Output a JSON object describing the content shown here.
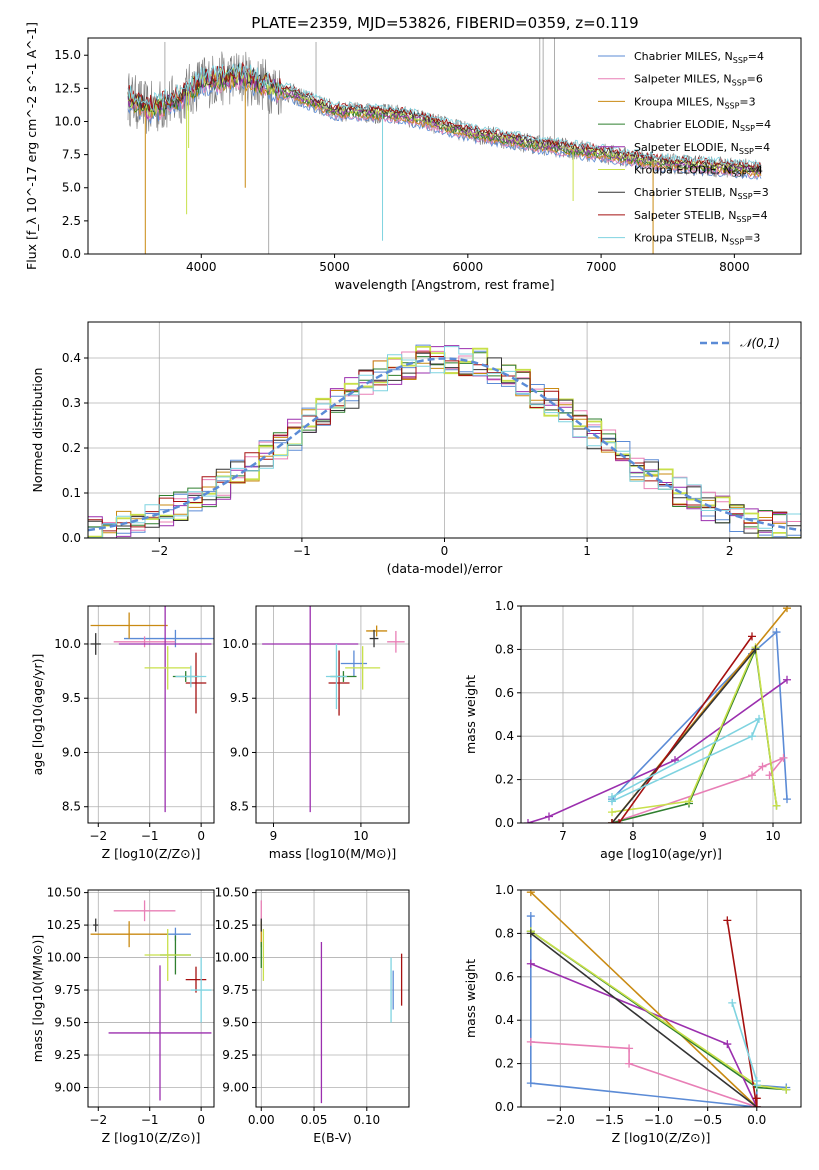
{
  "figure_title": "PLATE=2359, MJD=53826, FIBERID=0359, z=0.119",
  "models": [
    {
      "name": "Chabrier MILES",
      "nssp": "4",
      "color": "#5b8bd6"
    },
    {
      "name": "Salpeter MILES",
      "nssp": "6",
      "color": "#e87fb6"
    },
    {
      "name": "Kroupa MILES",
      "nssp": "3",
      "color": "#c98a12"
    },
    {
      "name": "Chabrier ELODIE",
      "nssp": "4",
      "color": "#2f7f2f"
    },
    {
      "name": "Salpeter ELODIE",
      "nssp": "4",
      "color": "#9b2fae"
    },
    {
      "name": "Kroupa ELODIE",
      "nssp": "4",
      "color": "#c8e04a"
    },
    {
      "name": "Chabrier STELIB",
      "nssp": "3",
      "color": "#333333"
    },
    {
      "name": "Salpeter STELIB",
      "nssp": "4",
      "color": "#a51010"
    },
    {
      "name": "Kroupa STELIB",
      "nssp": "3",
      "color": "#7fd3e0"
    }
  ],
  "chart_data": [
    {
      "id": "spectrum",
      "type": "line",
      "xlabel": "wavelength [Angstrom, rest frame]",
      "ylabel": "Flux [f_λ 10^-17 erg cm^-2 s^-1 A^-1]",
      "xlim": [
        3150,
        8500
      ],
      "ylim": [
        0,
        16.3
      ],
      "xticks": [
        "4000",
        "5000",
        "6000",
        "7000",
        "8000"
      ],
      "yticks": [
        "0.0",
        "2.5",
        "5.0",
        "7.5",
        "10.0",
        "12.5",
        "15.0"
      ],
      "legend_placement": "top-right",
      "grid": false,
      "continuum": [
        [
          3450,
          11.8
        ],
        [
          3600,
          10.9
        ],
        [
          3800,
          11.5
        ],
        [
          4000,
          13.0
        ],
        [
          4300,
          13.4
        ],
        [
          4700,
          12.0
        ],
        [
          5000,
          10.8
        ],
        [
          5500,
          10.5
        ],
        [
          6000,
          9.2
        ],
        [
          6500,
          8.3
        ],
        [
          7000,
          7.6
        ],
        [
          7500,
          6.8
        ],
        [
          8000,
          6.5
        ],
        [
          8200,
          6.3
        ]
      ]
    },
    {
      "id": "residuals",
      "type": "bar",
      "xlabel": "(data-model)/error",
      "ylabel": "Normed distribution",
      "xlim": [
        -2.5,
        2.5
      ],
      "ylim": [
        0,
        0.48
      ],
      "xticks": [
        "−2",
        "−1",
        "0",
        "1",
        "2"
      ],
      "yticks": [
        "0.0",
        "0.1",
        "0.2",
        "0.3",
        "0.4"
      ],
      "legend": "𝒩(0,1)",
      "legend_placement": "top-right",
      "grid": true
    },
    {
      "id": "age_vs_Z",
      "type": "scatter",
      "xlabel": "Z [log10(Z/Z⊙)]",
      "ylabel": "age  [log10(age/yr)]",
      "xlim": [
        -2.2,
        0.25
      ],
      "ylim": [
        8.35,
        10.35
      ],
      "xticks": [
        "−2",
        "−1",
        "0"
      ],
      "yticks": [
        "8.5",
        "9.0",
        "9.5",
        "10.0"
      ],
      "grid": true,
      "points": [
        {
          "model": 0,
          "x": -0.5,
          "y": 10.05,
          "ex": 1.0,
          "ey": 0.08
        },
        {
          "model": 1,
          "x": -1.1,
          "y": 10.02,
          "ex": 0.6,
          "ey": 0.05
        },
        {
          "model": 2,
          "x": -1.4,
          "y": 10.17,
          "ex": 0.75,
          "ey": 0.12
        },
        {
          "model": 3,
          "x": -0.3,
          "y": 9.7,
          "ex": 0.25,
          "ey": 0.05
        },
        {
          "model": 4,
          "x": -0.7,
          "y": 10.0,
          "ex": 0.9,
          "ey": 1.55
        },
        {
          "model": 5,
          "x": -0.65,
          "y": 9.78,
          "ex": 0.45,
          "ey": 0.2
        },
        {
          "model": 6,
          "x": -2.05,
          "y": 10.0,
          "ex": 0.1,
          "ey": 0.1
        },
        {
          "model": 7,
          "x": -0.1,
          "y": 9.64,
          "ex": 0.2,
          "ey": 0.28
        },
        {
          "model": 8,
          "x": -0.2,
          "y": 9.7,
          "ex": 0.3,
          "ey": 0.1
        }
      ]
    },
    {
      "id": "age_vs_mass",
      "type": "scatter",
      "xlabel": "mass [log10(M/M⊙)]",
      "ylabel": "",
      "xlim": [
        8.8,
        10.55
      ],
      "ylim": [
        8.35,
        10.35
      ],
      "xticks": [
        "9",
        "10"
      ],
      "yticks": [
        "8.5",
        "9.0",
        "9.5",
        "10.0"
      ],
      "grid": true,
      "points": [
        {
          "model": 0,
          "x": 9.92,
          "y": 9.82,
          "ex": 0.15,
          "ey": 0.12
        },
        {
          "model": 1,
          "x": 10.4,
          "y": 10.02,
          "ex": 0.1,
          "ey": 0.1
        },
        {
          "model": 2,
          "x": 10.18,
          "y": 10.12,
          "ex": 0.12,
          "ey": 0.05
        },
        {
          "model": 3,
          "x": 9.8,
          "y": 9.7,
          "ex": 0.15,
          "ey": 0.05
        },
        {
          "model": 4,
          "x": 9.42,
          "y": 10.0,
          "ex": 0.55,
          "ey": 1.55
        },
        {
          "model": 5,
          "x": 10.02,
          "y": 9.78,
          "ex": 0.2,
          "ey": 0.2
        },
        {
          "model": 6,
          "x": 10.15,
          "y": 10.05,
          "ex": 0.05,
          "ey": 0.08
        },
        {
          "model": 7,
          "x": 9.75,
          "y": 9.64,
          "ex": 0.12,
          "ey": 0.3
        },
        {
          "model": 8,
          "x": 9.72,
          "y": 9.7,
          "ex": 0.12,
          "ey": 0.3
        }
      ]
    },
    {
      "id": "weight_vs_age",
      "type": "line",
      "xlabel": "age  [log10(age/yr)]",
      "ylabel": "mass weight",
      "xlim": [
        6.4,
        10.4
      ],
      "ylim": [
        0,
        1.0
      ],
      "xticks": [
        "7",
        "8",
        "9",
        "10"
      ],
      "yticks": [
        "0.0",
        "0.2",
        "0.4",
        "0.6",
        "0.8",
        "1.0"
      ],
      "grid": true,
      "series": [
        {
          "model": 0,
          "points": [
            [
              7.7,
              0.11
            ],
            [
              9.7,
              0.78
            ],
            [
              10.05,
              0.88
            ],
            [
              10.2,
              0.11
            ]
          ]
        },
        {
          "model": 1,
          "points": [
            [
              7.7,
              0.0
            ],
            [
              9.7,
              0.22
            ],
            [
              9.85,
              0.26
            ],
            [
              10.15,
              0.3
            ],
            [
              9.95,
              0.22
            ]
          ]
        },
        {
          "model": 2,
          "points": [
            [
              7.7,
              0.0
            ],
            [
              10.2,
              0.99
            ]
          ]
        },
        {
          "model": 3,
          "points": [
            [
              7.7,
              0.0
            ],
            [
              8.8,
              0.09
            ],
            [
              9.75,
              0.8
            ],
            [
              10.05,
              0.08
            ]
          ]
        },
        {
          "model": 4,
          "points": [
            [
              6.5,
              0.0
            ],
            [
              6.8,
              0.03
            ],
            [
              8.6,
              0.29
            ],
            [
              10.2,
              0.66
            ]
          ]
        },
        {
          "model": 5,
          "points": [
            [
              7.7,
              0.05
            ],
            [
              8.8,
              0.1
            ],
            [
              9.75,
              0.81
            ],
            [
              10.05,
              0.08
            ]
          ]
        },
        {
          "model": 6,
          "points": [
            [
              7.7,
              0.0
            ],
            [
              9.75,
              0.8
            ]
          ]
        },
        {
          "model": 7,
          "points": [
            [
              7.7,
              0.0
            ],
            [
              7.8,
              0.0
            ],
            [
              9.7,
              0.86
            ]
          ]
        },
        {
          "model": 8,
          "points": [
            [
              7.7,
              0.1
            ],
            [
              9.7,
              0.4
            ],
            [
              9.8,
              0.48
            ],
            [
              7.7,
              0.12
            ]
          ]
        }
      ]
    },
    {
      "id": "mass_vs_Z",
      "type": "scatter",
      "xlabel": "Z [log10(Z/Z⊙)]",
      "ylabel": "mass [log10(M/M⊙)]",
      "xlim": [
        -2.2,
        0.25
      ],
      "ylim": [
        8.85,
        10.52
      ],
      "xticks": [
        "−2",
        "−1",
        "0"
      ],
      "yticks": [
        "9.00",
        "9.25",
        "9.50",
        "9.75",
        "10.00",
        "10.25",
        "10.50"
      ],
      "grid": true,
      "points": [
        {
          "model": 0,
          "x": -0.5,
          "y": 10.18,
          "ex": 0.3,
          "ey": 0.05
        },
        {
          "model": 1,
          "x": -1.1,
          "y": 10.36,
          "ex": 0.6,
          "ey": 0.08
        },
        {
          "model": 2,
          "x": -1.4,
          "y": 10.18,
          "ex": 0.75,
          "ey": 0.1
        },
        {
          "model": 3,
          "x": -0.5,
          "y": 10.02,
          "ex": 0.3,
          "ey": 0.15
        },
        {
          "model": 4,
          "x": -0.8,
          "y": 9.42,
          "ex": 1.0,
          "ey": 0.52
        },
        {
          "model": 5,
          "x": -0.65,
          "y": 10.02,
          "ex": 0.45,
          "ey": 0.2
        },
        {
          "model": 6,
          "x": -2.05,
          "y": 10.25,
          "ex": 0.05,
          "ey": 0.05
        },
        {
          "model": 7,
          "x": -0.1,
          "y": 9.83,
          "ex": 0.2,
          "ey": 0.1
        },
        {
          "model": 8,
          "x": 0.0,
          "y": 9.75,
          "ex": 0.2,
          "ey": 0.25
        }
      ]
    },
    {
      "id": "mass_vs_ebv",
      "type": "scatter",
      "xlabel": "E(B-V)",
      "ylabel": "",
      "xlim": [
        -0.005,
        0.14
      ],
      "ylim": [
        8.85,
        10.52
      ],
      "xticks": [
        "0.00",
        "0.05",
        "0.10"
      ],
      "yticks": [
        "9.00",
        "9.25",
        "9.50",
        "9.75",
        "10.00",
        "10.25",
        "10.50"
      ],
      "grid": true,
      "points": [
        {
          "model": 0,
          "x": 0.125,
          "y": 9.75,
          "ex": 0.0,
          "ey": 0.15
        },
        {
          "model": 1,
          "x": 0.0,
          "y": 10.36,
          "ex": 0.0,
          "ey": 0.08
        },
        {
          "model": 2,
          "x": 0.0,
          "y": 10.18,
          "ex": 0.0,
          "ey": 0.1
        },
        {
          "model": 3,
          "x": 0.0,
          "y": 10.02,
          "ex": 0.0,
          "ey": 0.1
        },
        {
          "model": 4,
          "x": 0.057,
          "y": 9.5,
          "ex": 0.0,
          "ey": 0.62
        },
        {
          "model": 5,
          "x": 0.002,
          "y": 10.02,
          "ex": 0.0,
          "ey": 0.2
        },
        {
          "model": 6,
          "x": 0.0,
          "y": 10.25,
          "ex": 0.0,
          "ey": 0.05
        },
        {
          "model": 7,
          "x": 0.133,
          "y": 9.83,
          "ex": 0.0,
          "ey": 0.2
        },
        {
          "model": 8,
          "x": 0.123,
          "y": 9.75,
          "ex": 0.0,
          "ey": 0.25
        }
      ]
    },
    {
      "id": "weight_vs_Z",
      "type": "line",
      "xlabel": "Z [log10(Z/Z⊙)]",
      "ylabel": "mass weight",
      "xlim": [
        -2.4,
        0.45
      ],
      "ylim": [
        0,
        1.0
      ],
      "xticks": [
        "−2.0",
        "−1.5",
        "−1.0",
        "−0.5",
        "0.0"
      ],
      "yticks": [
        "0.0",
        "0.2",
        "0.4",
        "0.6",
        "0.8",
        "1.0"
      ],
      "grid": true,
      "series": [
        {
          "model": 0,
          "points": [
            [
              -2.3,
              0.88
            ],
            [
              -2.3,
              0.11
            ],
            [
              0.0,
              0.0
            ],
            [
              0.0,
              0.1
            ],
            [
              0.3,
              0.09
            ]
          ]
        },
        {
          "model": 1,
          "points": [
            [
              -2.3,
              0.3
            ],
            [
              -1.3,
              0.27
            ],
            [
              -1.3,
              0.2
            ],
            [
              0.0,
              0.0
            ]
          ]
        },
        {
          "model": 2,
          "points": [
            [
              -2.3,
              0.99
            ],
            [
              0.0,
              0.0
            ]
          ]
        },
        {
          "model": 3,
          "points": [
            [
              -2.3,
              0.81
            ],
            [
              0.0,
              0.09
            ],
            [
              0.3,
              0.08
            ]
          ]
        },
        {
          "model": 4,
          "points": [
            [
              -2.3,
              0.66
            ],
            [
              -0.3,
              0.29
            ],
            [
              0.0,
              0.0
            ]
          ]
        },
        {
          "model": 5,
          "points": [
            [
              -2.3,
              0.81
            ],
            [
              0.0,
              0.1
            ],
            [
              0.3,
              0.08
            ]
          ]
        },
        {
          "model": 6,
          "points": [
            [
              -2.3,
              0.8
            ],
            [
              0.0,
              0.0
            ]
          ]
        },
        {
          "model": 7,
          "points": [
            [
              -0.3,
              0.86
            ],
            [
              0.0,
              0.0
            ],
            [
              0.0,
              0.04
            ]
          ]
        },
        {
          "model": 8,
          "points": [
            [
              -0.25,
              0.48
            ],
            [
              0.0,
              0.12
            ],
            [
              0.0,
              0.1
            ]
          ]
        }
      ]
    }
  ]
}
